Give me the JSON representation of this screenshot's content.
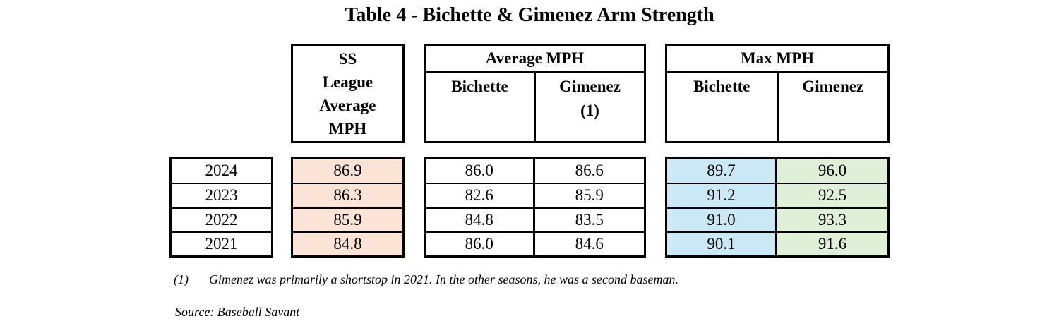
{
  "title": "Table 4 - Bichette & Gimenez Arm Strength",
  "columns": {
    "ss_league_avg": "SS League Average MPH",
    "avg_group": "Average MPH",
    "avg_bichette": "Bichette",
    "avg_gimenez": "Gimenez\n(1)",
    "max_group": "Max MPH",
    "max_bichette": "Bichette",
    "max_gimenez": "Gimenez"
  },
  "rows": [
    {
      "year": "2024",
      "ss": "86.9",
      "avg_bichette": "86.0",
      "avg_gimenez": "86.6",
      "max_bichette": "89.7",
      "max_gimenez": "96.0"
    },
    {
      "year": "2023",
      "ss": "86.3",
      "avg_bichette": "82.6",
      "avg_gimenez": "85.9",
      "max_bichette": "91.2",
      "max_gimenez": "92.5"
    },
    {
      "year": "2022",
      "ss": "85.9",
      "avg_bichette": "84.8",
      "avg_gimenez": "83.5",
      "max_bichette": "91.0",
      "max_gimenez": "93.3"
    },
    {
      "year": "2021",
      "ss": "84.8",
      "avg_bichette": "86.0",
      "avg_gimenez": "84.6",
      "max_bichette": "90.1",
      "max_gimenez": "91.6"
    }
  ],
  "colors": {
    "ss_fill": "#FBE3D6",
    "max_bichette_fill": "#CBE8F7",
    "max_gimenez_fill": "#E0EFD8",
    "border": "#000000"
  },
  "footnote": {
    "marker": "(1)",
    "text": "Gimenez was primarily a shortstop in 2021. In the other seasons, he was a second baseman."
  },
  "source": "Source: Baseball Savant"
}
